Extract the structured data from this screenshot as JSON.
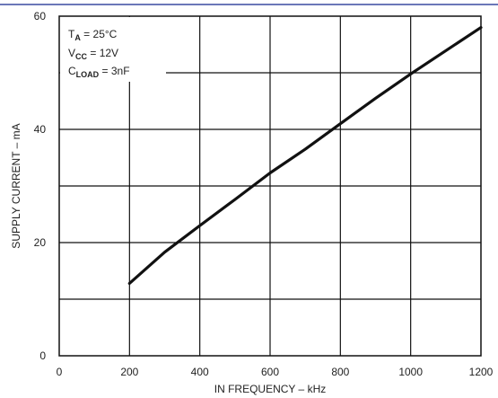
{
  "chart_data": {
    "type": "line",
    "xlabel": "IN FREQUENCY – kHz",
    "ylabel": "SUPPLY CURRENT – mA",
    "xlim": [
      0,
      1200
    ],
    "ylim": [
      0,
      60
    ],
    "x_ticks": [
      "0",
      "200",
      "400",
      "600",
      "800",
      "1000",
      "1200"
    ],
    "y_ticks": [
      "0",
      "20",
      "40",
      "60"
    ],
    "grid": true,
    "series": [
      {
        "x": [
          200,
          300,
          400,
          500,
          600,
          700,
          800,
          900,
          1000,
          1100,
          1200
        ],
        "y": [
          12.8,
          18.3,
          23.0,
          27.6,
          32.3,
          36.5,
          41.0,
          45.5,
          49.8,
          53.9,
          58.0
        ]
      }
    ],
    "annotation": {
      "ta": {
        "base": "T",
        "sub": "A",
        "rest": " = 25°C"
      },
      "vcc": {
        "base": "V",
        "sub": "CC",
        "rest": " = 12V"
      },
      "cload": {
        "base": "C",
        "sub": "LOAD",
        "rest": " = 3nF"
      }
    }
  },
  "colors": {
    "line": "#111111",
    "grid": "#111111",
    "header_rule": "#3a4aa0"
  }
}
